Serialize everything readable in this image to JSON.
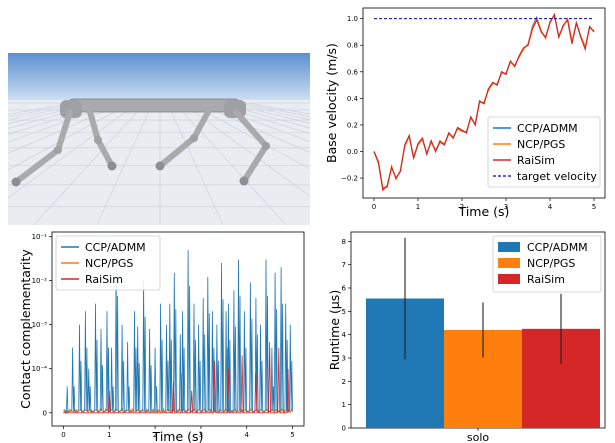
{
  "colors": {
    "ccp": "#1f77b4",
    "ncp": "#ff7f0e",
    "raisim": "#d62728",
    "target": "#0000cc",
    "sky_top": "#5b8fd1",
    "sky_bottom": "#cfe0f2",
    "ground": "#e9edf2",
    "robot": "#a9aaac"
  },
  "scene": {
    "image": "simulated quadruped robot on a grid floor"
  },
  "chart_data": [
    {
      "type": "line",
      "id": "velocity",
      "xlabel": "Time (s)",
      "ylabel": "Base velocity (m/s)",
      "xlim": [
        -0.25,
        5.25
      ],
      "ylim": [
        -0.35,
        1.08
      ],
      "xticks": [
        0,
        1,
        2,
        3,
        4,
        5
      ],
      "yticks": [
        -0.2,
        0.0,
        0.2,
        0.4,
        0.6,
        0.8,
        1.0
      ],
      "ytick_labels": [
        "−0.2",
        "0.0",
        "0.2",
        "0.4",
        "0.6",
        "0.8",
        "1.0"
      ],
      "legend_position": "lower-right",
      "target_velocity": 1.0,
      "series": [
        {
          "name": "CCP/ADMM",
          "x": [
            0,
            0.1,
            0.2,
            0.3,
            0.4,
            0.5,
            0.6,
            0.7,
            0.8,
            0.9,
            1.0,
            1.1,
            1.2,
            1.3,
            1.4,
            1.5,
            1.6,
            1.7,
            1.8,
            1.9,
            2.0,
            2.1,
            2.2,
            2.3,
            2.4,
            2.5,
            2.6,
            2.7,
            2.8,
            2.9,
            3.0,
            3.1,
            3.2,
            3.3,
            3.4,
            3.5,
            3.6,
            3.7,
            3.8,
            3.9,
            4.0,
            4.1,
            4.2,
            4.3,
            4.4,
            4.5,
            4.6,
            4.7,
            4.8,
            4.9,
            5.0
          ],
          "values": [
            0.0,
            -0.08,
            -0.28,
            -0.26,
            -0.12,
            -0.2,
            -0.15,
            0.05,
            0.12,
            -0.05,
            0.05,
            0.1,
            -0.02,
            0.08,
            0.0,
            0.07,
            0.05,
            0.14,
            0.1,
            0.18,
            0.16,
            0.14,
            0.26,
            0.2,
            0.38,
            0.36,
            0.47,
            0.52,
            0.5,
            0.6,
            0.58,
            0.68,
            0.64,
            0.72,
            0.78,
            0.8,
            0.94,
            1.01,
            0.9,
            0.86,
            0.97,
            1.03,
            0.86,
            0.95,
            0.99,
            0.82,
            0.97,
            0.86,
            0.78,
            0.94,
            0.9
          ]
        },
        {
          "name": "NCP/PGS",
          "x": [
            0,
            0.1,
            0.2,
            0.3,
            0.4,
            0.5,
            0.6,
            0.7,
            0.8,
            0.9,
            1.0,
            1.1,
            1.2,
            1.3,
            1.4,
            1.5,
            1.6,
            1.7,
            1.8,
            1.9,
            2.0,
            2.1,
            2.2,
            2.3,
            2.4,
            2.5,
            2.6,
            2.7,
            2.8,
            2.9,
            3.0,
            3.1,
            3.2,
            3.3,
            3.4,
            3.5,
            3.6,
            3.7,
            3.8,
            3.9,
            4.0,
            4.1,
            4.2,
            4.3,
            4.4,
            4.5,
            4.6,
            4.7,
            4.8,
            4.9,
            5.0
          ],
          "values": [
            0.0,
            -0.09,
            -0.27,
            -0.27,
            -0.11,
            -0.21,
            -0.14,
            0.04,
            0.11,
            -0.04,
            0.05,
            0.09,
            -0.01,
            0.07,
            0.01,
            0.07,
            0.06,
            0.13,
            0.11,
            0.17,
            0.15,
            0.15,
            0.25,
            0.21,
            0.37,
            0.37,
            0.46,
            0.51,
            0.51,
            0.59,
            0.59,
            0.67,
            0.65,
            0.71,
            0.77,
            0.81,
            0.93,
            1.0,
            0.91,
            0.85,
            0.98,
            1.02,
            0.87,
            0.94,
            1.0,
            0.83,
            0.96,
            0.87,
            0.79,
            0.93,
            0.91
          ]
        },
        {
          "name": "RaiSim",
          "x": [
            0,
            0.1,
            0.2,
            0.3,
            0.4,
            0.5,
            0.6,
            0.7,
            0.8,
            0.9,
            1.0,
            1.1,
            1.2,
            1.3,
            1.4,
            1.5,
            1.6,
            1.7,
            1.8,
            1.9,
            2.0,
            2.1,
            2.2,
            2.3,
            2.4,
            2.5,
            2.6,
            2.7,
            2.8,
            2.9,
            3.0,
            3.1,
            3.2,
            3.3,
            3.4,
            3.5,
            3.6,
            3.7,
            3.8,
            3.9,
            4.0,
            4.1,
            4.2,
            4.3,
            4.4,
            4.5,
            4.6,
            4.7,
            4.8,
            4.9,
            5.0
          ],
          "values": [
            0.0,
            -0.08,
            -0.29,
            -0.26,
            -0.12,
            -0.2,
            -0.15,
            0.05,
            0.12,
            -0.05,
            0.06,
            0.1,
            -0.02,
            0.08,
            0.0,
            0.08,
            0.05,
            0.14,
            0.1,
            0.18,
            0.16,
            0.14,
            0.26,
            0.2,
            0.38,
            0.36,
            0.47,
            0.52,
            0.5,
            0.6,
            0.58,
            0.68,
            0.64,
            0.72,
            0.78,
            0.8,
            0.92,
            0.99,
            0.9,
            0.86,
            0.97,
            1.03,
            0.86,
            0.95,
            0.99,
            0.81,
            0.97,
            0.86,
            0.77,
            0.94,
            0.9
          ]
        },
        {
          "name": "target velocity",
          "style": "dashed",
          "x": [
            0,
            5
          ],
          "values": [
            1.0,
            1.0
          ]
        }
      ]
    },
    {
      "type": "line",
      "id": "complementarity",
      "xlabel": "Time (s)",
      "ylabel": "Contact complementarity",
      "yscale": "symlog",
      "linthresh": 0.0001,
      "xlim": [
        -0.25,
        5.25
      ],
      "ylim_decades": [
        -0.3,
        4.1
      ],
      "xticks": [
        0,
        1,
        2,
        3,
        4,
        5
      ],
      "ytick_labels": [
        "0",
        "10⁻⁴",
        "10⁻³",
        "10⁻²",
        "10⁻¹"
      ],
      "legend_position": "upper-left",
      "series": [
        {
          "name": "CCP/ADMM",
          "x": [
            0.05,
            0.2,
            0.35,
            0.48,
            0.55,
            0.7,
            0.82,
            0.95,
            1.05,
            1.15,
            1.28,
            1.4,
            1.55,
            1.62,
            1.75,
            1.88,
            2.0,
            2.12,
            2.25,
            2.32,
            2.42,
            2.55,
            2.6,
            2.72,
            2.85,
            2.95,
            3.05,
            3.15,
            3.25,
            3.35,
            3.45,
            3.55,
            3.6,
            3.72,
            3.82,
            3.95,
            4.08,
            4.2,
            4.3,
            4.42,
            4.55,
            4.62,
            4.75,
            4.85,
            4.95
          ],
          "values": [
            0.0,
            0.0003,
            0.001,
            0.002,
            0.0001,
            0.003,
            0.0008,
            0.002,
            0.0003,
            0.03,
            0.001,
            0.0004,
            0.002,
            0.0009,
            0.01,
            0.0008,
            0.0003,
            0.003,
            0.001,
            0.003,
            0.015,
            0.0006,
            0.002,
            0.05,
            0.003,
            0.001,
            0.004,
            0.012,
            0.002,
            0.001,
            0.025,
            0.002,
            0.003,
            0.006,
            0.03,
            0.002,
            0.009,
            0.004,
            0.001,
            0.03,
            0.0003,
            0.015,
            0.02,
            0.003,
            0.001
          ]
        },
        {
          "name": "NCP/PGS",
          "x": [
            0,
            1,
            2,
            3,
            4,
            5
          ],
          "values": [
            0.0,
            0.0,
            0.0,
            0.0,
            0.0,
            0.0
          ]
        },
        {
          "name": "RaiSim",
          "x": [
            0.3,
            1.0,
            1.6,
            2.4,
            2.8,
            3.3,
            3.6,
            3.9,
            4.2,
            4.5,
            4.7,
            4.9
          ],
          "values": [
            0.0,
            5e-05,
            0.0,
            7e-05,
            5e-05,
            0.00015,
            0.0001,
            0.0002,
            9e-05,
            0.0004,
            0.0003,
            0.0001
          ]
        }
      ]
    },
    {
      "type": "bar",
      "id": "runtime",
      "categories": [
        "solo"
      ],
      "ylabel": "Runtime (μs)",
      "ylim": [
        0,
        8.4
      ],
      "yticks": [
        0,
        1,
        2,
        3,
        4,
        5,
        6,
        7,
        8
      ],
      "legend_position": "upper-right",
      "series": [
        {
          "name": "CCP/ADMM",
          "values": [
            5.55
          ],
          "err_low": [
            2.95
          ],
          "err_high": [
            8.15
          ]
        },
        {
          "name": "NCP/PGS",
          "values": [
            4.2
          ],
          "err_low": [
            3.02
          ],
          "err_high": [
            5.38
          ]
        },
        {
          "name": "RaiSim",
          "values": [
            4.25
          ],
          "err_low": [
            2.75
          ],
          "err_high": [
            5.75
          ]
        }
      ]
    }
  ]
}
